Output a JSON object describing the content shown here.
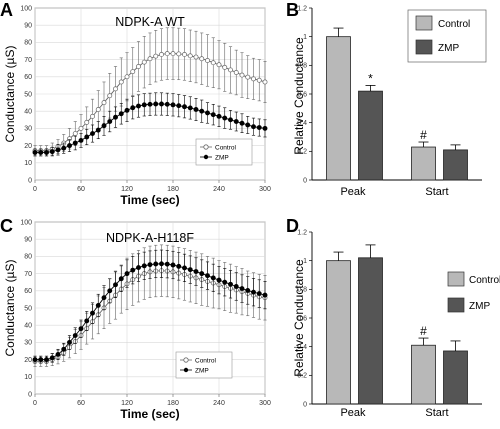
{
  "colors": {
    "control_bar": "#b8b8b8",
    "zmp_bar": "#555555",
    "frame_bg": "#ffffff",
    "grid": "#d9d9d9",
    "axis": "#777777"
  },
  "chart_data": [
    {
      "panel": "A",
      "type": "line",
      "title": "NDPK-A WT",
      "xlabel": "Time (sec)",
      "ylabel": "Conductance (µS)",
      "xlim": [
        0,
        300
      ],
      "ylim": [
        0,
        100
      ],
      "xticks": [
        0,
        60,
        120,
        180,
        240,
        300
      ],
      "yticks": [
        0,
        10,
        20,
        30,
        40,
        50,
        60,
        70,
        80,
        90,
        100
      ],
      "grid": true,
      "legend_position": "lower-right",
      "x": [
        0,
        7.5,
        15,
        22.5,
        30,
        37.5,
        45,
        52.5,
        60,
        67.5,
        75,
        82.5,
        90,
        97.5,
        105,
        112.5,
        120,
        127.5,
        135,
        142.5,
        150,
        157.5,
        165,
        172.5,
        180,
        187.5,
        195,
        202.5,
        210,
        217.5,
        225,
        232.5,
        240,
        247.5,
        255,
        262.5,
        270,
        277.5,
        285,
        292.5,
        300
      ],
      "series": [
        {
          "name": "Control",
          "marker": "open-circle",
          "values": [
            17,
            17,
            17,
            18,
            19.5,
            21.5,
            24,
            27,
            30,
            33.5,
            37,
            41,
            45,
            49,
            53,
            57,
            60,
            63,
            66,
            68.5,
            70.5,
            72,
            73,
            73.5,
            73.5,
            73.3,
            73,
            72.2,
            71.5,
            70.5,
            69.5,
            68.2,
            67,
            65.5,
            64,
            62.5,
            61,
            59.8,
            58.8,
            58,
            57
          ],
          "errors": [
            3,
            3,
            3,
            3.5,
            4,
            5,
            6,
            7,
            8,
            9,
            10,
            11,
            12,
            13,
            13,
            14,
            14,
            14,
            14.5,
            15,
            15,
            15,
            15,
            15,
            15,
            15,
            15,
            15,
            15,
            15,
            15,
            14.5,
            14,
            14,
            13.5,
            13,
            13,
            12.5,
            12,
            12,
            12
          ]
        },
        {
          "name": "ZMP",
          "marker": "filled-circle",
          "values": [
            16,
            16,
            16,
            16.5,
            17.5,
            18.5,
            20,
            21.5,
            23,
            25,
            27,
            29,
            31.5,
            34,
            36.5,
            38.5,
            40.5,
            42,
            43,
            43.7,
            44,
            44.2,
            44.2,
            44,
            43.7,
            43.2,
            42.6,
            41.9,
            41,
            40,
            39,
            38,
            37,
            36,
            35,
            34,
            33,
            32,
            31,
            30.5,
            30
          ],
          "errors": [
            2,
            2,
            2,
            2.5,
            3,
            3,
            3.5,
            4,
            4,
            4.5,
            5,
            5,
            5.5,
            6,
            6,
            6,
            6.5,
            6.5,
            6.5,
            6.5,
            6.5,
            6.5,
            6.5,
            6.5,
            6.5,
            6.5,
            6.5,
            6.5,
            6.5,
            6.5,
            6,
            6,
            6,
            6,
            5.5,
            5.5,
            5.5,
            5,
            5,
            5,
            5
          ]
        }
      ]
    },
    {
      "panel": "B",
      "type": "bar",
      "title": "",
      "xlabel": "",
      "ylabel": "Relative Conductance",
      "ylim": [
        0,
        1.2
      ],
      "yticks": [
        0,
        0.2,
        0.4,
        0.6,
        0.8,
        1,
        1.2
      ],
      "ytick_labels": [
        "0",
        "0.2",
        "0.4",
        "0.6",
        "0.8",
        "1",
        "1.2"
      ],
      "legend_position": "top-right",
      "categories": [
        "Peak",
        "Start"
      ],
      "series": [
        {
          "name": "Control",
          "values": [
            1.0,
            0.23
          ],
          "errors": [
            0.06,
            0.035
          ]
        },
        {
          "name": "ZMP",
          "values": [
            0.62,
            0.21
          ],
          "errors": [
            0.04,
            0.035
          ]
        }
      ],
      "annotations": [
        {
          "text": "*",
          "category": 0,
          "series": 1
        },
        {
          "text": "#",
          "category": 1,
          "series": 0
        }
      ]
    },
    {
      "panel": "C",
      "type": "line",
      "title": "NDPK-A-H118F",
      "xlabel": "Time (sec)",
      "ylabel": "Conductance (µS)",
      "xlim": [
        0,
        300
      ],
      "ylim": [
        0,
        100
      ],
      "xticks": [
        0,
        60,
        120,
        180,
        240,
        300
      ],
      "yticks": [
        0,
        10,
        20,
        30,
        40,
        50,
        60,
        70,
        80,
        90,
        100
      ],
      "grid": true,
      "legend_position": "lower-right",
      "x": [
        0,
        7.5,
        15,
        22.5,
        30,
        37.5,
        45,
        52.5,
        60,
        67.5,
        75,
        82.5,
        90,
        97.5,
        105,
        112.5,
        120,
        127.5,
        135,
        142.5,
        150,
        157.5,
        165,
        172.5,
        180,
        187.5,
        195,
        202.5,
        210,
        217.5,
        225,
        232.5,
        240,
        247.5,
        255,
        262.5,
        270,
        277.5,
        285,
        292.5,
        300
      ],
      "series": [
        {
          "name": "Control",
          "marker": "open-circle",
          "values": [
            19,
            19,
            19,
            20,
            21.5,
            24,
            27,
            30.5,
            34,
            38,
            42,
            46,
            50,
            54,
            57.5,
            61,
            64,
            66.5,
            68.5,
            70,
            71,
            71.5,
            71.7,
            71.5,
            71,
            70.3,
            69.5,
            68.5,
            67.5,
            66.5,
            65.5,
            64.5,
            63.5,
            62.5,
            61.5,
            60.5,
            59.5,
            58.5,
            57.5,
            56.5,
            56
          ],
          "errors": [
            3,
            3,
            3,
            3.5,
            4,
            5,
            6,
            7,
            8,
            9,
            10,
            11,
            12,
            13,
            14,
            14,
            15,
            15,
            15,
            15,
            15,
            15,
            15,
            15,
            15,
            15,
            15,
            15,
            15,
            15,
            14.5,
            14.5,
            14,
            14,
            14,
            13.5,
            13.5,
            13,
            13,
            13,
            13
          ]
        },
        {
          "name": "ZMP",
          "marker": "filled-circle",
          "values": [
            20,
            20,
            20,
            21,
            23,
            26,
            30,
            34,
            38,
            42.5,
            47,
            51.5,
            56,
            60,
            63.5,
            67,
            70,
            72,
            73.5,
            74.5,
            75.2,
            75.6,
            75.7,
            75.5,
            75,
            74.2,
            73.3,
            72.3,
            71.2,
            70,
            68.8,
            67.5,
            66.2,
            65,
            63.8,
            62.5,
            61.3,
            60.2,
            59.2,
            58.4,
            57.5
          ],
          "errors": [
            2,
            2,
            2,
            2.5,
            3,
            3.5,
            4,
            4.5,
            5,
            5.5,
            6,
            6.5,
            7,
            7,
            7.5,
            7.5,
            8,
            8,
            8,
            8,
            8,
            8,
            8,
            8,
            8,
            8,
            8,
            8,
            8,
            8,
            8,
            8,
            8,
            8,
            8,
            8,
            8,
            8,
            8,
            8,
            8
          ]
        }
      ]
    },
    {
      "panel": "D",
      "type": "bar",
      "title": "",
      "xlabel": "",
      "ylabel": "Relative Conductance",
      "ylim": [
        0,
        1.2
      ],
      "yticks": [
        0,
        0.2,
        0.4,
        0.6,
        0.8,
        1,
        1.2
      ],
      "ytick_labels": [
        "0",
        "0.2",
        "0.4",
        "0.6",
        "0.8",
        "1",
        "1.2"
      ],
      "legend_position": "middle-right",
      "categories": [
        "Peak",
        "Start"
      ],
      "series": [
        {
          "name": "Control",
          "values": [
            1.0,
            0.41
          ],
          "errors": [
            0.06,
            0.05
          ]
        },
        {
          "name": "ZMP",
          "values": [
            1.02,
            0.37
          ],
          "errors": [
            0.09,
            0.07
          ]
        }
      ],
      "annotations": [
        {
          "text": "#",
          "category": 1,
          "series": 0
        }
      ]
    }
  ]
}
